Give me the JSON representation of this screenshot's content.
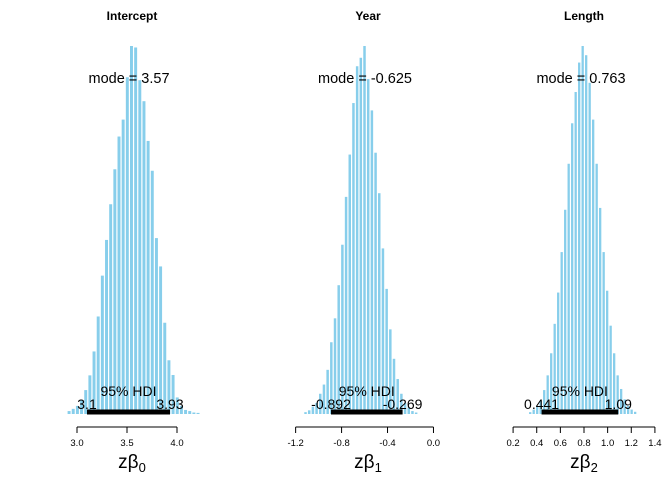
{
  "chart_data": [
    {
      "type": "histogram",
      "title": "Intercept",
      "xlabel": "zβ0",
      "xlabel_symbol": "zβ",
      "xlabel_subscript": "0",
      "xlim": [
        2.75,
        4.35
      ],
      "xticks": [
        3.0,
        3.5,
        4.0
      ],
      "xtick_labels": [
        "3.0",
        "3.5",
        "4.0"
      ],
      "mode_label": "mode = 3.57",
      "hdi_label": "95% HDI",
      "hdi": [
        3.1,
        3.93
      ],
      "hdi_labels": [
        "3.1",
        "3.93"
      ],
      "bin_width": 0.0416,
      "bins_start": 2.9,
      "bin_heights": [
        0.008,
        0.014,
        0.022,
        0.038,
        0.065,
        0.105,
        0.17,
        0.265,
        0.376,
        0.473,
        0.57,
        0.665,
        0.754,
        0.8,
        0.915,
        1.0,
        0.996,
        0.907,
        0.85,
        0.742,
        0.661,
        0.478,
        0.401,
        0.248,
        0.146,
        0.106,
        0.045,
        0.022,
        0.011,
        0.008,
        0.004,
        0.003
      ]
    },
    {
      "type": "histogram",
      "title": "Year",
      "xlabel": "zβ1",
      "xlabel_symbol": "zβ",
      "xlabel_subscript": "1",
      "xlim": [
        -1.31,
        0.17
      ],
      "xticks": [
        -1.2,
        -0.8,
        -0.4,
        0.0
      ],
      "xtick_labels": [
        "-1.2",
        "-0.8",
        "-0.4",
        "0.0"
      ],
      "mode_label": "mode = -0.625",
      "hdi_label": "95% HDI",
      "hdi": [
        -0.892,
        -0.269
      ],
      "hdi_labels": [
        "-0.892",
        "-0.269"
      ],
      "bin_width": 0.0321,
      "bins_start": -1.13,
      "bin_heights": [
        0.005,
        0.01,
        0.02,
        0.03,
        0.055,
        0.08,
        0.12,
        0.195,
        0.26,
        0.35,
        0.46,
        0.59,
        0.705,
        0.845,
        0.945,
        0.968,
        1.0,
        0.91,
        0.825,
        0.71,
        0.6,
        0.45,
        0.34,
        0.23,
        0.15,
        0.095,
        0.055,
        0.03,
        0.018,
        0.008,
        0.004
      ]
    },
    {
      "type": "histogram",
      "title": "Length",
      "xlabel": "zβ2",
      "xlabel_symbol": "zβ",
      "xlabel_subscript": "2",
      "xlim": [
        0.14,
        1.46
      ],
      "xticks": [
        0.2,
        0.4,
        0.6,
        0.8,
        1.0,
        1.2,
        1.4
      ],
      "xtick_labels": [
        "0.2",
        "0.4",
        "0.6",
        "0.8",
        "1.0",
        "1.2",
        "1.4"
      ],
      "mode_label": "mode = 0.763",
      "hdi_label": "95% HDI",
      "hdi": [
        0.441,
        1.09
      ],
      "hdi_labels": [
        "0.441",
        "1.09"
      ],
      "bin_width": 0.0296,
      "bins_start": 0.33,
      "bin_heights": [
        0.005,
        0.012,
        0.022,
        0.035,
        0.065,
        0.105,
        0.165,
        0.245,
        0.33,
        0.44,
        0.555,
        0.68,
        0.79,
        0.875,
        0.955,
        1.0,
        0.975,
        0.9,
        0.8,
        0.68,
        0.56,
        0.44,
        0.335,
        0.24,
        0.165,
        0.105,
        0.068,
        0.04,
        0.022,
        0.012,
        0.006
      ]
    }
  ],
  "colors": {
    "bar": "#87ceeb",
    "hdi": "#000000"
  }
}
